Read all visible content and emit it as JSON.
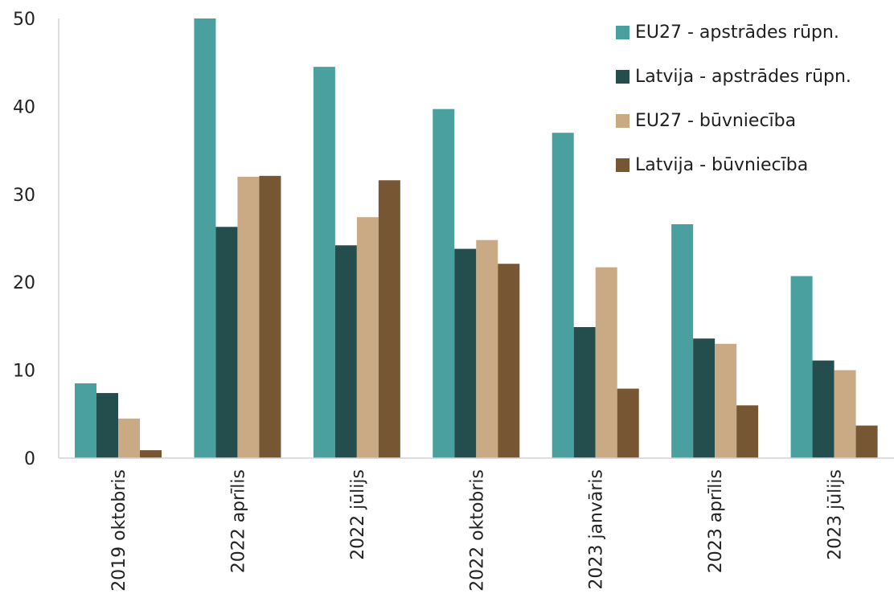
{
  "chart_data": {
    "type": "bar",
    "categories": [
      "2019 oktobris",
      "2022 aprīlis",
      "2022 jūlijs",
      "2022 oktobris",
      "2023 janvāris",
      "2023 aprīlis",
      "2023 jūlijs"
    ],
    "series": [
      {
        "name": "EU27 - apstrādes rūpn.",
        "color": "#4a9f9f",
        "values": [
          8.5,
          50.0,
          44.5,
          39.7,
          37.0,
          26.6,
          20.7
        ]
      },
      {
        "name": "Latvija - apstrādes rūpn.",
        "color": "#244e4d",
        "values": [
          7.4,
          26.3,
          24.2,
          23.8,
          14.9,
          13.6,
          11.1
        ]
      },
      {
        "name": "EU27 - būvniecība",
        "color": "#c9aa85",
        "values": [
          4.5,
          32.0,
          27.4,
          24.8,
          21.7,
          13.0,
          10.0
        ]
      },
      {
        "name": "Latvija - būvniecība",
        "color": "#775733",
        "values": [
          0.9,
          32.1,
          31.6,
          22.1,
          7.9,
          6.0,
          3.7
        ]
      }
    ],
    "ylim": [
      0,
      50
    ],
    "yticks": [
      "0",
      "10",
      "20",
      "30",
      "40",
      "50"
    ],
    "grid": false,
    "legend_position": "top-right",
    "title": "",
    "xlabel": "",
    "ylabel": ""
  }
}
